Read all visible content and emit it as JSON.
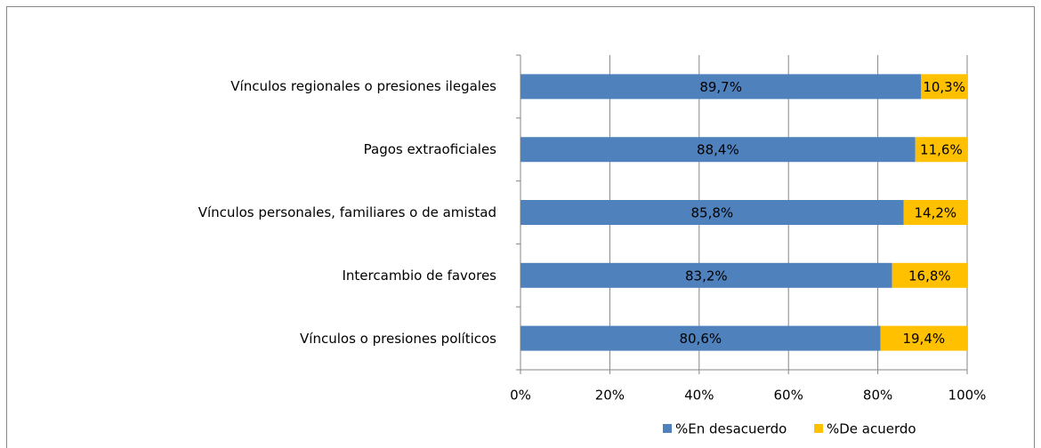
{
  "chart_data": {
    "type": "stacked-barh",
    "categories": [
      "Vínculos regionales o presiones ilegales",
      "Pagos extraoficiales",
      "Vínculos personales, familiares o de amistad",
      "Intercambio de favores",
      "Vínculos o presiones políticos"
    ],
    "series": [
      {
        "name": "%En desacuerdo",
        "color": "#4f81bd",
        "values": [
          89.7,
          88.4,
          85.8,
          83.2,
          80.6
        ],
        "value_labels": [
          "89,7%",
          "88,4%",
          "85,8%",
          "83,2%",
          "80,6%"
        ]
      },
      {
        "name": "%De acuerdo",
        "color": "#ffc000",
        "values": [
          10.3,
          11.6,
          14.2,
          16.8,
          19.4
        ],
        "value_labels": [
          "10,3%",
          "11,6%",
          "14,2%",
          "16,8%",
          "19,4%"
        ]
      }
    ],
    "xlim": [
      0,
      100
    ],
    "xticks": [
      {
        "value": 0,
        "label": "0%"
      },
      {
        "value": 20,
        "label": "20%"
      },
      {
        "value": 40,
        "label": "40%"
      },
      {
        "value": 60,
        "label": "60%"
      },
      {
        "value": 80,
        "label": "80%"
      },
      {
        "value": 100,
        "label": "100%"
      }
    ],
    "grid": true,
    "legend": "bottom"
  }
}
